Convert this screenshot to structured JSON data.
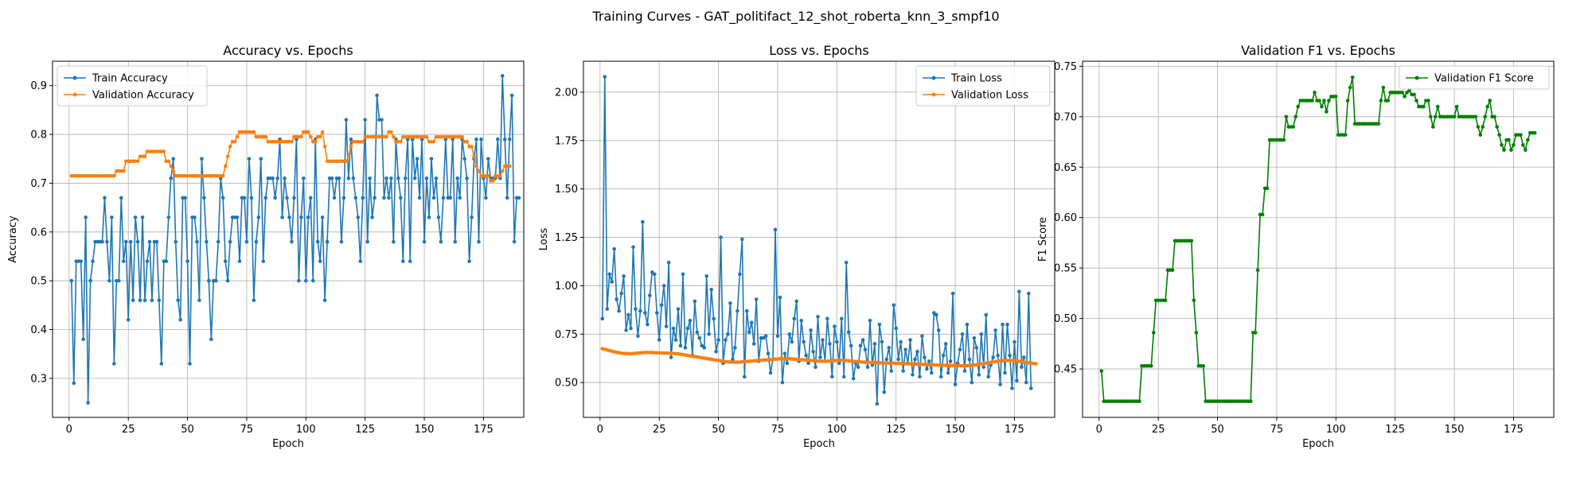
{
  "figure": {
    "title": "Training Curves - GAT_politifact_12_shot_roberta_knn_3_smpf10"
  },
  "chart_data": [
    {
      "type": "line",
      "title": "Accuracy vs. Epochs",
      "xlabel": "Epoch",
      "ylabel": "Accuracy",
      "xlim": [
        -7,
        192
      ],
      "ylim": [
        0.22,
        0.95
      ],
      "xticks": [
        0,
        25,
        50,
        75,
        100,
        125,
        150,
        175
      ],
      "yticks": [
        0.3,
        0.4,
        0.5,
        0.6,
        0.7,
        0.8,
        0.9
      ],
      "ytick_labels": [
        "0.3",
        "0.4",
        "0.5",
        "0.6",
        "0.7",
        "0.8",
        "0.9"
      ],
      "grid": true,
      "legend": "upper left",
      "series": [
        {
          "name": "Train Accuracy",
          "color": "#1f77b4",
          "y": [
            0.5,
            0.29,
            0.54,
            0.54,
            0.54,
            0.38,
            0.63,
            0.25,
            0.5,
            0.54,
            0.58,
            0.58,
            0.58,
            0.58,
            0.67,
            0.58,
            0.5,
            0.63,
            0.33,
            0.5,
            0.5,
            0.67,
            0.54,
            0.58,
            0.42,
            0.58,
            0.46,
            0.63,
            0.58,
            0.46,
            0.63,
            0.46,
            0.54,
            0.58,
            0.46,
            0.58,
            0.58,
            0.46,
            0.33,
            0.54,
            0.54,
            0.63,
            0.71,
            0.75,
            0.58,
            0.46,
            0.42,
            0.67,
            0.67,
            0.54,
            0.33,
            0.63,
            0.63,
            0.58,
            0.46,
            0.75,
            0.67,
            0.58,
            0.5,
            0.38,
            0.5,
            0.5,
            0.58,
            0.71,
            0.67,
            0.54,
            0.5,
            0.58,
            0.63,
            0.63,
            0.63,
            0.54,
            0.67,
            0.67,
            0.58,
            0.75,
            0.67,
            0.46,
            0.58,
            0.63,
            0.75,
            0.54,
            0.67,
            0.71,
            0.71,
            0.71,
            0.67,
            0.71,
            0.79,
            0.63,
            0.71,
            0.67,
            0.63,
            0.58,
            0.67,
            0.79,
            0.5,
            0.63,
            0.71,
            0.5,
            0.63,
            0.67,
            0.5,
            0.79,
            0.58,
            0.54,
            0.63,
            0.46,
            0.58,
            0.71,
            0.71,
            0.67,
            0.71,
            0.71,
            0.58,
            0.67,
            0.83,
            0.71,
            0.79,
            0.71,
            0.67,
            0.63,
            0.54,
            0.67,
            0.83,
            0.58,
            0.71,
            0.63,
            0.67,
            0.88,
            0.83,
            0.83,
            0.67,
            0.71,
            0.67,
            0.71,
            0.58,
            0.79,
            0.71,
            0.67,
            0.54,
            0.71,
            0.79,
            0.54,
            0.79,
            0.71,
            0.75,
            0.67,
            0.79,
            0.58,
            0.71,
            0.63,
            0.75,
            0.67,
            0.71,
            0.63,
            0.58,
            0.67,
            0.79,
            0.67,
            0.67,
            0.79,
            0.58,
            0.71,
            0.67,
            0.79,
            0.75,
            0.71,
            0.54,
            0.63,
            0.75,
            0.79,
            0.58,
            0.79,
            0.71,
            0.67,
            0.75,
            0.71,
            0.71,
            0.71,
            0.79,
            0.71,
            0.92,
            0.79,
            0.67,
            0.79,
            0.88,
            0.58,
            0.67,
            0.67
          ]
        },
        {
          "name": "Validation Accuracy",
          "color": "#ff7f0e",
          "y": [
            0.715,
            0.715,
            0.715,
            0.715,
            0.715,
            0.715,
            0.715,
            0.715,
            0.715,
            0.715,
            0.715,
            0.715,
            0.715,
            0.715,
            0.715,
            0.715,
            0.715,
            0.715,
            0.715,
            0.725,
            0.725,
            0.725,
            0.725,
            0.745,
            0.745,
            0.745,
            0.745,
            0.745,
            0.745,
            0.755,
            0.755,
            0.755,
            0.765,
            0.765,
            0.765,
            0.765,
            0.765,
            0.765,
            0.765,
            0.765,
            0.745,
            0.745,
            0.735,
            0.725,
            0.715,
            0.715,
            0.715,
            0.715,
            0.715,
            0.715,
            0.715,
            0.715,
            0.715,
            0.715,
            0.715,
            0.715,
            0.715,
            0.715,
            0.715,
            0.715,
            0.715,
            0.715,
            0.715,
            0.715,
            0.715,
            0.735,
            0.755,
            0.775,
            0.785,
            0.785,
            0.795,
            0.805,
            0.805,
            0.805,
            0.805,
            0.805,
            0.805,
            0.805,
            0.795,
            0.795,
            0.795,
            0.795,
            0.795,
            0.785,
            0.785,
            0.785,
            0.785,
            0.785,
            0.785,
            0.785,
            0.785,
            0.785,
            0.785,
            0.785,
            0.795,
            0.795,
            0.795,
            0.795,
            0.805,
            0.805,
            0.805,
            0.795,
            0.785,
            0.785,
            0.795,
            0.795,
            0.805,
            0.775,
            0.745,
            0.745,
            0.745,
            0.745,
            0.745,
            0.745,
            0.745,
            0.745,
            0.745,
            0.755,
            0.775,
            0.785,
            0.785,
            0.785,
            0.785,
            0.785,
            0.795,
            0.795,
            0.795,
            0.795,
            0.795,
            0.795,
            0.795,
            0.795,
            0.795,
            0.795,
            0.805,
            0.805,
            0.795,
            0.785,
            0.785,
            0.785,
            0.795,
            0.795,
            0.795,
            0.795,
            0.795,
            0.795,
            0.795,
            0.795,
            0.795,
            0.795,
            0.795,
            0.785,
            0.785,
            0.785,
            0.795,
            0.795,
            0.795,
            0.795,
            0.795,
            0.795,
            0.795,
            0.795,
            0.795,
            0.795,
            0.795,
            0.795,
            0.785,
            0.785,
            0.775,
            0.775,
            0.755,
            0.735,
            0.725,
            0.715,
            0.715,
            0.715,
            0.715,
            0.705,
            0.705,
            0.715,
            0.715,
            0.715,
            0.725,
            0.735,
            0.735,
            0.735
          ]
        }
      ]
    },
    {
      "type": "line",
      "title": "Loss vs. Epochs",
      "xlabel": "Epoch",
      "ylabel": "Loss",
      "xlim": [
        -7,
        192
      ],
      "ylim": [
        0.32,
        2.16
      ],
      "xticks": [
        0,
        25,
        50,
        75,
        100,
        125,
        150,
        175
      ],
      "yticks": [
        0.5,
        0.75,
        1.0,
        1.25,
        1.5,
        1.75,
        2.0
      ],
      "ytick_labels": [
        "0.50",
        "0.75",
        "1.00",
        "1.25",
        "1.50",
        "1.75",
        "2.00"
      ],
      "grid": true,
      "legend": "upper right",
      "series": [
        {
          "name": "Train Loss",
          "color": "#1f77b4",
          "y": [
            0.83,
            2.08,
            0.88,
            1.06,
            1.02,
            1.19,
            0.93,
            0.87,
            0.96,
            1.05,
            0.77,
            0.85,
            0.78,
            1.2,
            0.88,
            0.74,
            0.87,
            1.33,
            0.86,
            0.8,
            0.95,
            1.07,
            1.06,
            0.86,
            0.72,
            0.9,
            1.0,
            0.79,
            1.12,
            0.63,
            0.78,
            0.72,
            0.88,
            0.69,
            1.06,
            0.68,
            0.78,
            0.82,
            0.64,
            0.92,
            0.76,
            0.73,
            0.69,
            0.68,
            1.05,
            0.75,
            0.98,
            0.83,
            0.66,
            0.72,
            1.25,
            0.6,
            0.72,
            0.75,
            0.91,
            0.62,
            0.68,
            0.87,
            1.06,
            1.24,
            0.53,
            0.87,
            0.76,
            0.81,
            0.7,
            0.93,
            0.61,
            0.73,
            0.73,
            0.74,
            0.65,
            0.55,
            0.62,
            1.29,
            0.74,
            0.94,
            0.5,
            0.65,
            0.6,
            0.75,
            0.71,
            0.83,
            0.92,
            0.61,
            0.82,
            0.71,
            0.64,
            0.6,
            0.77,
            0.66,
            0.58,
            0.84,
            0.63,
            0.72,
            0.61,
            0.83,
            0.7,
            0.53,
            0.79,
            0.71,
            0.6,
            0.83,
            0.53,
            1.12,
            0.76,
            0.69,
            0.52,
            0.6,
            0.58,
            0.69,
            0.72,
            0.67,
            0.58,
            0.82,
            0.59,
            0.7,
            0.39,
            0.8,
            0.71,
            0.45,
            0.62,
            0.68,
            0.56,
            0.9,
            0.78,
            0.62,
            0.71,
            0.56,
            0.67,
            0.6,
            0.72,
            0.54,
            0.62,
            0.66,
            0.53,
            0.74,
            0.63,
            0.57,
            0.61,
            0.55,
            0.86,
            0.85,
            0.77,
            0.53,
            0.64,
            0.7,
            0.55,
            0.61,
            0.96,
            0.49,
            0.6,
            0.67,
            0.75,
            0.56,
            0.8,
            0.62,
            0.5,
            0.73,
            0.68,
            0.54,
            0.75,
            0.58,
            0.85,
            0.53,
            0.59,
            0.63,
            0.77,
            0.64,
            0.49,
            0.8,
            0.55,
            0.8,
            0.64,
            0.47,
            0.71,
            0.51,
            0.97,
            0.58,
            0.63,
            0.5,
            0.96,
            0.47
          ]
        },
        {
          "name": "Validation Loss",
          "color": "#ff7f0e",
          "y": [
            0.675,
            0.672,
            0.668,
            0.665,
            0.662,
            0.659,
            0.656,
            0.654,
            0.652,
            0.65,
            0.65,
            0.649,
            0.649,
            0.65,
            0.651,
            0.652,
            0.653,
            0.654,
            0.655,
            0.655,
            0.655,
            0.655,
            0.654,
            0.654,
            0.653,
            0.653,
            0.652,
            0.652,
            0.651,
            0.651,
            0.65,
            0.649,
            0.648,
            0.646,
            0.644,
            0.642,
            0.64,
            0.638,
            0.636,
            0.634,
            0.632,
            0.63,
            0.628,
            0.626,
            0.624,
            0.622,
            0.62,
            0.618,
            0.616,
            0.614,
            0.612,
            0.61,
            0.608,
            0.607,
            0.606,
            0.605,
            0.605,
            0.605,
            0.606,
            0.607,
            0.608,
            0.609,
            0.61,
            0.611,
            0.612,
            0.613,
            0.614,
            0.615,
            0.616,
            0.617,
            0.618,
            0.619,
            0.62,
            0.621,
            0.622,
            0.623,
            0.623,
            0.623,
            0.623,
            0.623,
            0.622,
            0.621,
            0.62,
            0.619,
            0.618,
            0.617,
            0.616,
            0.615,
            0.614,
            0.613,
            0.612,
            0.611,
            0.61,
            0.61,
            0.61,
            0.61,
            0.611,
            0.612,
            0.613,
            0.614,
            0.615,
            0.615,
            0.614,
            0.613,
            0.612,
            0.611,
            0.61,
            0.609,
            0.608,
            0.607,
            0.606,
            0.605,
            0.604,
            0.604,
            0.603,
            0.603,
            0.602,
            0.602,
            0.602,
            0.601,
            0.601,
            0.6,
            0.6,
            0.6,
            0.599,
            0.599,
            0.598,
            0.598,
            0.597,
            0.597,
            0.596,
            0.596,
            0.595,
            0.595,
            0.594,
            0.594,
            0.593,
            0.593,
            0.592,
            0.592,
            0.591,
            0.591,
            0.59,
            0.59,
            0.589,
            0.589,
            0.588,
            0.588,
            0.588,
            0.587,
            0.587,
            0.587,
            0.587,
            0.587,
            0.587,
            0.588,
            0.589,
            0.59,
            0.592,
            0.594,
            0.596,
            0.598,
            0.6,
            0.602,
            0.604,
            0.606,
            0.608,
            0.61,
            0.612,
            0.613,
            0.614,
            0.614,
            0.614,
            0.613,
            0.612,
            0.611,
            0.61,
            0.608,
            0.606,
            0.604,
            0.602,
            0.6,
            0.598,
            0.597
          ]
        }
      ]
    },
    {
      "type": "line",
      "title": "Validation F1 vs. Epochs",
      "xlabel": "Epoch",
      "ylabel": "F1 Score",
      "xlim": [
        -7,
        192
      ],
      "ylim": [
        0.402,
        0.755
      ],
      "xticks": [
        0,
        25,
        50,
        75,
        100,
        125,
        150,
        175
      ],
      "yticks": [
        0.45,
        0.5,
        0.55,
        0.6,
        0.65,
        0.7,
        0.75
      ],
      "ytick_labels": [
        "0.45",
        "0.50",
        "0.55",
        "0.60",
        "0.65",
        "0.70",
        "0.75"
      ],
      "grid": true,
      "legend": "upper right",
      "series": [
        {
          "name": "Validation F1 Score",
          "color": "#008000",
          "y": [
            0.448,
            0.418,
            0.418,
            0.418,
            0.418,
            0.418,
            0.418,
            0.418,
            0.418,
            0.418,
            0.418,
            0.418,
            0.418,
            0.418,
            0.418,
            0.418,
            0.418,
            0.453,
            0.453,
            0.453,
            0.453,
            0.453,
            0.486,
            0.518,
            0.518,
            0.518,
            0.518,
            0.518,
            0.548,
            0.548,
            0.548,
            0.577,
            0.577,
            0.577,
            0.577,
            0.577,
            0.577,
            0.577,
            0.577,
            0.518,
            0.486,
            0.453,
            0.453,
            0.453,
            0.418,
            0.418,
            0.418,
            0.418,
            0.418,
            0.418,
            0.418,
            0.418,
            0.418,
            0.418,
            0.418,
            0.418,
            0.418,
            0.418,
            0.418,
            0.418,
            0.418,
            0.418,
            0.418,
            0.418,
            0.486,
            0.486,
            0.548,
            0.603,
            0.603,
            0.629,
            0.629,
            0.677,
            0.677,
            0.677,
            0.677,
            0.677,
            0.677,
            0.677,
            0.7,
            0.69,
            0.69,
            0.69,
            0.7,
            0.71,
            0.716,
            0.716,
            0.716,
            0.716,
            0.716,
            0.716,
            0.724,
            0.716,
            0.716,
            0.71,
            0.716,
            0.705,
            0.716,
            0.72,
            0.72,
            0.72,
            0.682,
            0.682,
            0.682,
            0.682,
            0.716,
            0.729,
            0.739,
            0.693,
            0.693,
            0.693,
            0.693,
            0.693,
            0.693,
            0.693,
            0.693,
            0.693,
            0.693,
            0.693,
            0.716,
            0.729,
            0.716,
            0.716,
            0.724,
            0.724,
            0.724,
            0.724,
            0.724,
            0.724,
            0.72,
            0.724,
            0.726,
            0.722,
            0.722,
            0.716,
            0.71,
            0.71,
            0.71,
            0.716,
            0.716,
            0.7,
            0.69,
            0.7,
            0.71,
            0.7,
            0.7,
            0.7,
            0.7,
            0.7,
            0.7,
            0.7,
            0.71,
            0.7,
            0.7,
            0.7,
            0.7,
            0.7,
            0.7,
            0.7,
            0.7,
            0.69,
            0.682,
            0.69,
            0.7,
            0.71,
            0.716,
            0.7,
            0.7,
            0.69,
            0.682,
            0.672,
            0.667,
            0.677,
            0.677,
            0.667,
            0.672,
            0.682,
            0.682,
            0.682,
            0.672,
            0.667,
            0.677,
            0.684,
            0.684,
            0.684
          ]
        }
      ]
    }
  ]
}
